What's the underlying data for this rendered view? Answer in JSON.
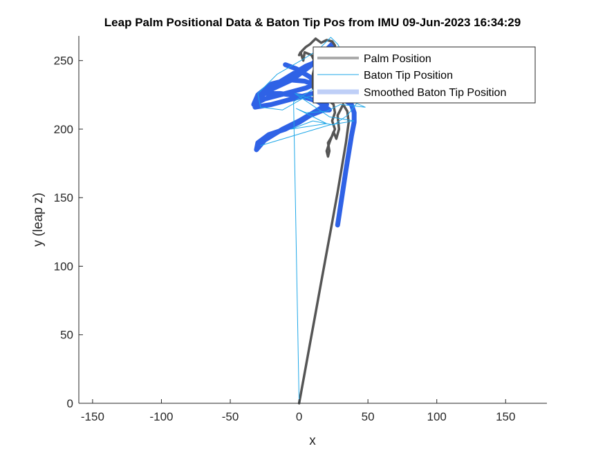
{
  "chart_data": {
    "type": "line",
    "title": "Leap Palm Positional Data & Baton Tip Pos from IMU 09-Jun-2023 16:34:29",
    "xlabel": "x",
    "ylabel": "y (leap z)",
    "xlim": [
      -160,
      180
    ],
    "ylim": [
      0,
      268
    ],
    "xticks": [
      -150,
      -100,
      -50,
      0,
      50,
      100,
      150
    ],
    "yticks": [
      0,
      50,
      100,
      150,
      200,
      250
    ],
    "grid": false,
    "legend_position": "top-right",
    "colors": {
      "palm": "#555555",
      "baton": "#1ea7e8",
      "smoothed": "#2f62e6",
      "axis": "#262626"
    },
    "series": [
      {
        "name": "Palm Position",
        "key": "palm",
        "points": [
          [
            0,
            0
          ],
          [
            4,
            22
          ],
          [
            8,
            44
          ],
          [
            12,
            66
          ],
          [
            16,
            88
          ],
          [
            20,
            110
          ],
          [
            24,
            132
          ],
          [
            28,
            154
          ],
          [
            31,
            172
          ],
          [
            34,
            190
          ],
          [
            36,
            205
          ],
          [
            35,
            213
          ],
          [
            32,
            218
          ],
          [
            28,
            210
          ],
          [
            29,
            200
          ],
          [
            27,
            193
          ],
          [
            25,
            198
          ],
          [
            22,
            190
          ],
          [
            20,
            184
          ],
          [
            21,
            180
          ],
          [
            22,
            184
          ],
          [
            21,
            190
          ],
          [
            24,
            195
          ],
          [
            26,
            200
          ],
          [
            24,
            206
          ],
          [
            26,
            212
          ],
          [
            25,
            218
          ],
          [
            20,
            222
          ],
          [
            14,
            225
          ],
          [
            10,
            230
          ],
          [
            10,
            240
          ],
          [
            12,
            248
          ],
          [
            9,
            254
          ],
          [
            4,
            256
          ],
          [
            3,
            250
          ],
          [
            1,
            256
          ],
          [
            0,
            254
          ],
          [
            2,
            257
          ],
          [
            5,
            260
          ],
          [
            8,
            262
          ],
          [
            12,
            266
          ],
          [
            16,
            263
          ],
          [
            20,
            265
          ],
          [
            24,
            264
          ],
          [
            26,
            261
          ]
        ]
      },
      {
        "name": "Baton Tip Position",
        "key": "baton",
        "points": [
          [
            0,
            0
          ],
          [
            -4,
            220
          ],
          [
            10,
            229
          ],
          [
            25,
            235
          ],
          [
            30,
            245
          ],
          [
            32,
            255
          ],
          [
            28,
            262
          ],
          [
            23,
            267
          ],
          [
            14,
            258
          ],
          [
            3,
            251
          ],
          [
            -16,
            240
          ],
          [
            -30,
            226
          ],
          [
            -28,
            216
          ],
          [
            -12,
            214
          ],
          [
            2,
            222
          ],
          [
            20,
            228
          ],
          [
            30,
            224
          ],
          [
            48,
            216
          ],
          [
            30,
            218
          ],
          [
            20,
            213
          ],
          [
            5,
            212
          ],
          [
            -2,
            215
          ],
          [
            20,
            204
          ],
          [
            -6,
            200
          ],
          [
            10,
            206
          ],
          [
            25,
            203
          ],
          [
            35,
            210
          ],
          [
            42,
            219
          ],
          [
            14,
            220
          ],
          [
            -3,
            226
          ],
          [
            22,
            209
          ],
          [
            40,
            206
          ],
          [
            22,
            203
          ],
          [
            -28,
            188
          ]
        ]
      },
      {
        "name": "Smoothed Baton Tip Position",
        "key": "smoothed",
        "points": [
          [
            28,
            130
          ],
          [
            31,
            150
          ],
          [
            34,
            170
          ],
          [
            38,
            195
          ],
          [
            40,
            205
          ],
          [
            40,
            212
          ],
          [
            38,
            218
          ],
          [
            30,
            223
          ],
          [
            18,
            230
          ],
          [
            4,
            235
          ],
          [
            -8,
            236
          ],
          [
            -20,
            233
          ],
          [
            -30,
            225
          ],
          [
            -33,
            218
          ],
          [
            -25,
            222
          ],
          [
            -10,
            226
          ],
          [
            5,
            230
          ],
          [
            18,
            236
          ],
          [
            24,
            244
          ],
          [
            22,
            250
          ],
          [
            15,
            250
          ],
          [
            5,
            246
          ],
          [
            -5,
            240
          ],
          [
            -18,
            232
          ],
          [
            -30,
            222
          ],
          [
            -32,
            216
          ],
          [
            -20,
            218
          ],
          [
            -5,
            222
          ],
          [
            10,
            226
          ],
          [
            22,
            228
          ],
          [
            28,
            232
          ],
          [
            28,
            240
          ],
          [
            27,
            250
          ],
          [
            26,
            258
          ],
          [
            24,
            262
          ],
          [
            18,
            256
          ],
          [
            8,
            246
          ],
          [
            -5,
            236
          ],
          [
            -18,
            230
          ],
          [
            -26,
            226
          ],
          [
            -14,
            226
          ],
          [
            2,
            224
          ],
          [
            14,
            220
          ],
          [
            22,
            214
          ],
          [
            18,
            214
          ],
          [
            8,
            210
          ],
          [
            0,
            205
          ],
          [
            -10,
            200
          ],
          [
            -22,
            196
          ],
          [
            -30,
            190
          ],
          [
            -31,
            185
          ],
          [
            -25,
            192
          ],
          [
            -12,
            200
          ],
          [
            0,
            206
          ],
          [
            12,
            213
          ],
          [
            20,
            218
          ],
          [
            18,
            224
          ],
          [
            14,
            230
          ],
          [
            8,
            238
          ],
          [
            -2,
            244
          ],
          [
            -10,
            247
          ]
        ]
      }
    ]
  }
}
